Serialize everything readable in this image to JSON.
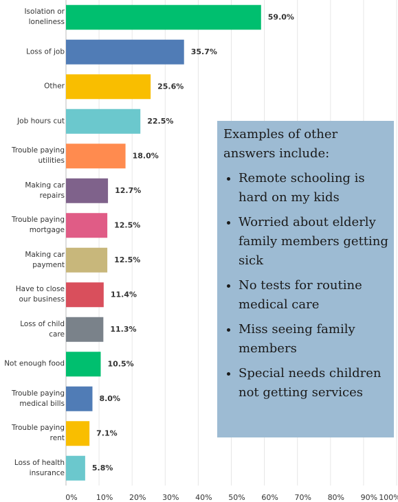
{
  "chart_data": {
    "type": "bar",
    "orientation": "horizontal",
    "categories": [
      "Isolation or\nloneliness",
      "Loss of job",
      "Other",
      "Job hours cut",
      "Trouble paying\nutilities",
      "Making car\nrepairs",
      "Trouble paying\nmortgage",
      "Making car\npayment",
      "Have to close\nour business",
      "Loss of child\ncare",
      "Not enough food",
      "Trouble paying\nmedical bills",
      "Trouble paying\nrent",
      "Loss of health\ninsurance"
    ],
    "values": [
      59.0,
      35.7,
      25.6,
      22.5,
      18.0,
      12.7,
      12.5,
      12.5,
      11.4,
      11.3,
      10.5,
      8.0,
      7.1,
      5.8
    ],
    "value_labels": [
      "59.0%",
      "35.7%",
      "25.6%",
      "22.5%",
      "18.0%",
      "12.7%",
      "12.5%",
      "12.5%",
      "11.4%",
      "11.3%",
      "10.5%",
      "8.0%",
      "7.1%",
      "5.8%"
    ],
    "colors": [
      "#00bf6f",
      "#507cb6",
      "#f9be00",
      "#6bc8cd",
      "#ff8b4f",
      "#7f628b",
      "#e05c86",
      "#c8b77b",
      "#d94f5c",
      "#7a828a",
      "#00bf6f",
      "#507cb6",
      "#f9be00",
      "#6bc8cd"
    ],
    "xlim": [
      0,
      100
    ],
    "xticks": [
      {
        "value": 0,
        "label": "0%"
      },
      {
        "value": 10,
        "label": "10%"
      },
      {
        "value": 20,
        "label": "20%"
      },
      {
        "value": 30,
        "label": "30%"
      },
      {
        "value": 40,
        "label": "40%"
      },
      {
        "value": 50,
        "label": "50%"
      },
      {
        "value": 60,
        "label": "60%"
      },
      {
        "value": 70,
        "label": "70%"
      },
      {
        "value": 80,
        "label": "80%"
      },
      {
        "value": 90,
        "label": "90%"
      },
      {
        "value": 100,
        "label": "100%"
      }
    ],
    "grid": true,
    "annotation": {
      "title": "Examples of other answers include:",
      "items": [
        "Remote schooling is hard on my kids",
        "Worried about elderly family members getting sick",
        "No tests for routine medical care",
        "Miss seeing family members",
        "Special needs children not getting services"
      ]
    }
  }
}
